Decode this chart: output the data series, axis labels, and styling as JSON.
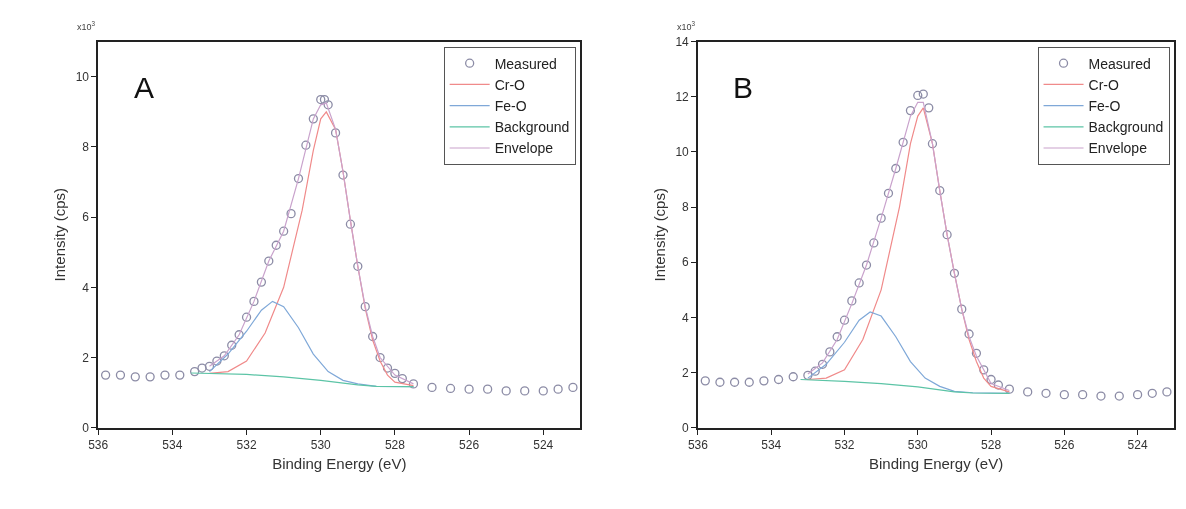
{
  "chart_data": [
    {
      "type": "line",
      "xlabel": "Binding Energy (eV)",
      "ylabel": "Intensity (cps)",
      "annotations": [
        "A",
        "x10$^{3}$"
      ],
      "xlim": [
        536,
        523
      ],
      "xticks": [
        536,
        534,
        532,
        530,
        528,
        526,
        524
      ],
      "ylim": [
        0,
        11
      ],
      "yticks": [
        0,
        2,
        4,
        6,
        8,
        10
      ],
      "grid": false,
      "legend": "top right",
      "series": [
        {
          "name": "Measured",
          "type": "scatter",
          "marker": "circle",
          "color": "#8c8ca6",
          "x": [
            535.8,
            535.4,
            535.0,
            534.6,
            534.2,
            533.8,
            533.4,
            533.2,
            533.0,
            532.8,
            532.6,
            532.4,
            532.2,
            532.0,
            531.8,
            531.6,
            531.4,
            531.2,
            531.0,
            530.8,
            530.6,
            530.4,
            530.2,
            530.0,
            529.9,
            529.8,
            529.6,
            529.4,
            529.2,
            529.0,
            528.8,
            528.6,
            528.4,
            528.2,
            528.0,
            527.8,
            527.5,
            527.0,
            526.5,
            526.0,
            525.5,
            525.0,
            524.5,
            524.0,
            523.6,
            523.2
          ],
          "values": [
            1.5,
            1.5,
            1.45,
            1.45,
            1.5,
            1.5,
            1.6,
            1.7,
            1.75,
            1.9,
            2.05,
            2.35,
            2.65,
            3.15,
            3.6,
            4.15,
            4.75,
            5.2,
            5.6,
            6.1,
            7.1,
            8.05,
            8.8,
            9.35,
            9.35,
            9.2,
            8.4,
            7.2,
            5.8,
            4.6,
            3.45,
            2.6,
            2.0,
            1.7,
            1.55,
            1.4,
            1.25,
            1.15,
            1.12,
            1.1,
            1.1,
            1.05,
            1.05,
            1.05,
            1.1,
            1.15
          ]
        },
        {
          "name": "Cr-O",
          "color": "#f08a8a",
          "x": [
            533,
            532.5,
            532,
            531.5,
            531,
            530.5,
            530.2,
            530,
            529.85,
            529.6,
            529.4,
            529.2,
            529,
            528.8,
            528.6,
            528.4,
            528.2,
            528,
            527.5
          ],
          "values": [
            1.55,
            1.6,
            1.9,
            2.7,
            4.0,
            6.2,
            7.9,
            8.8,
            9.0,
            8.5,
            7.3,
            5.9,
            4.6,
            3.4,
            2.5,
            1.9,
            1.5,
            1.3,
            1.2
          ]
        },
        {
          "name": "Fe-O",
          "color": "#7fa8d8",
          "x": [
            533,
            532.5,
            532,
            531.6,
            531.3,
            531,
            530.6,
            530.2,
            529.8,
            529.4,
            529,
            528.5,
            527.5
          ],
          "values": [
            1.6,
            2.1,
            2.75,
            3.35,
            3.6,
            3.45,
            2.85,
            2.1,
            1.6,
            1.35,
            1.25,
            1.18,
            1.17
          ]
        },
        {
          "name": "Background",
          "color": "#5cc4a6",
          "x": [
            533.5,
            532,
            531,
            530,
            529,
            528.5,
            527.5
          ],
          "values": [
            1.56,
            1.52,
            1.45,
            1.35,
            1.22,
            1.18,
            1.17
          ]
        },
        {
          "name": "Envelope",
          "color": "#c9a2cc",
          "x": [
            533,
            532.6,
            532.2,
            531.8,
            531.4,
            531,
            530.6,
            530.2,
            530,
            529.85,
            529.6,
            529.4,
            529.2,
            529,
            528.8,
            528.6,
            528.4,
            528,
            527.5
          ],
          "values": [
            1.75,
            2.05,
            2.65,
            3.6,
            4.75,
            5.6,
            7.1,
            8.8,
            9.2,
            9.25,
            8.5,
            7.3,
            5.9,
            4.6,
            3.45,
            2.6,
            2.0,
            1.5,
            1.25
          ]
        }
      ]
    },
    {
      "type": "line",
      "xlabel": "Binding Energy (eV)",
      "ylabel": "Intensity (cps)",
      "annotations": [
        "B",
        "x10$^{3}$"
      ],
      "xlim": [
        536,
        523
      ],
      "xticks": [
        536,
        534,
        532,
        530,
        528,
        526,
        524
      ],
      "ylim": [
        0,
        14
      ],
      "yticks": [
        0,
        2,
        4,
        6,
        8,
        10,
        12,
        14
      ],
      "grid": false,
      "legend": "top right",
      "series": [
        {
          "name": "Measured",
          "type": "scatter",
          "marker": "circle",
          "color": "#8c8ca6",
          "x": [
            535.8,
            535.4,
            535.0,
            534.6,
            534.2,
            533.8,
            533.4,
            533.0,
            532.8,
            532.6,
            532.4,
            532.2,
            532.0,
            531.8,
            531.6,
            531.4,
            531.2,
            531.0,
            530.8,
            530.6,
            530.4,
            530.2,
            530.0,
            529.85,
            529.7,
            529.6,
            529.4,
            529.2,
            529.0,
            528.8,
            528.6,
            528.4,
            528.2,
            528.0,
            527.8,
            527.5,
            527.0,
            526.5,
            526.0,
            525.5,
            525.0,
            524.5,
            524.0,
            523.6,
            523.2
          ],
          "values": [
            1.7,
            1.65,
            1.65,
            1.65,
            1.7,
            1.75,
            1.85,
            1.9,
            2.05,
            2.3,
            2.75,
            3.3,
            3.9,
            4.6,
            5.25,
            5.9,
            6.7,
            7.6,
            8.5,
            9.4,
            10.35,
            11.5,
            12.05,
            12.1,
            11.6,
            10.3,
            8.6,
            7.0,
            5.6,
            4.3,
            3.4,
            2.7,
            2.1,
            1.75,
            1.55,
            1.4,
            1.3,
            1.25,
            1.2,
            1.2,
            1.15,
            1.15,
            1.2,
            1.25,
            1.3
          ]
        },
        {
          "name": "Cr-O",
          "color": "#f08a8a",
          "x": [
            533,
            532.5,
            532,
            531.5,
            531,
            530.5,
            530.2,
            530,
            529.85,
            529.6,
            529.4,
            529.2,
            529,
            528.8,
            528.6,
            528.4,
            528.2,
            528,
            527.5
          ],
          "values": [
            1.75,
            1.8,
            2.1,
            3.2,
            5.0,
            8.0,
            10.3,
            11.3,
            11.6,
            10.3,
            8.6,
            7.0,
            5.6,
            4.3,
            3.2,
            2.4,
            1.8,
            1.5,
            1.3
          ]
        },
        {
          "name": "Fe-O",
          "color": "#7fa8d8",
          "x": [
            533,
            532.5,
            532,
            531.6,
            531.3,
            531,
            530.6,
            530.2,
            529.8,
            529.4,
            529,
            528.5,
            527.5
          ],
          "values": [
            1.8,
            2.3,
            3.1,
            3.9,
            4.2,
            4.05,
            3.3,
            2.4,
            1.8,
            1.5,
            1.32,
            1.27,
            1.25
          ]
        },
        {
          "name": "Background",
          "color": "#5cc4a6",
          "x": [
            533.2,
            532,
            531,
            530,
            529,
            528.5,
            527.5
          ],
          "values": [
            1.75,
            1.68,
            1.6,
            1.48,
            1.3,
            1.26,
            1.25
          ]
        },
        {
          "name": "Envelope",
          "color": "#c9a2cc",
          "x": [
            533,
            532.6,
            532.2,
            531.8,
            531.4,
            531,
            530.6,
            530.2,
            530,
            529.85,
            529.6,
            529.4,
            529.2,
            529,
            528.8,
            528.6,
            528.4,
            528,
            527.5
          ],
          "values": [
            1.95,
            2.35,
            3.2,
            4.5,
            5.9,
            7.6,
            9.4,
            11.3,
            11.8,
            11.8,
            10.3,
            8.6,
            7.0,
            5.6,
            4.3,
            3.3,
            2.6,
            1.6,
            1.35
          ]
        }
      ]
    }
  ]
}
